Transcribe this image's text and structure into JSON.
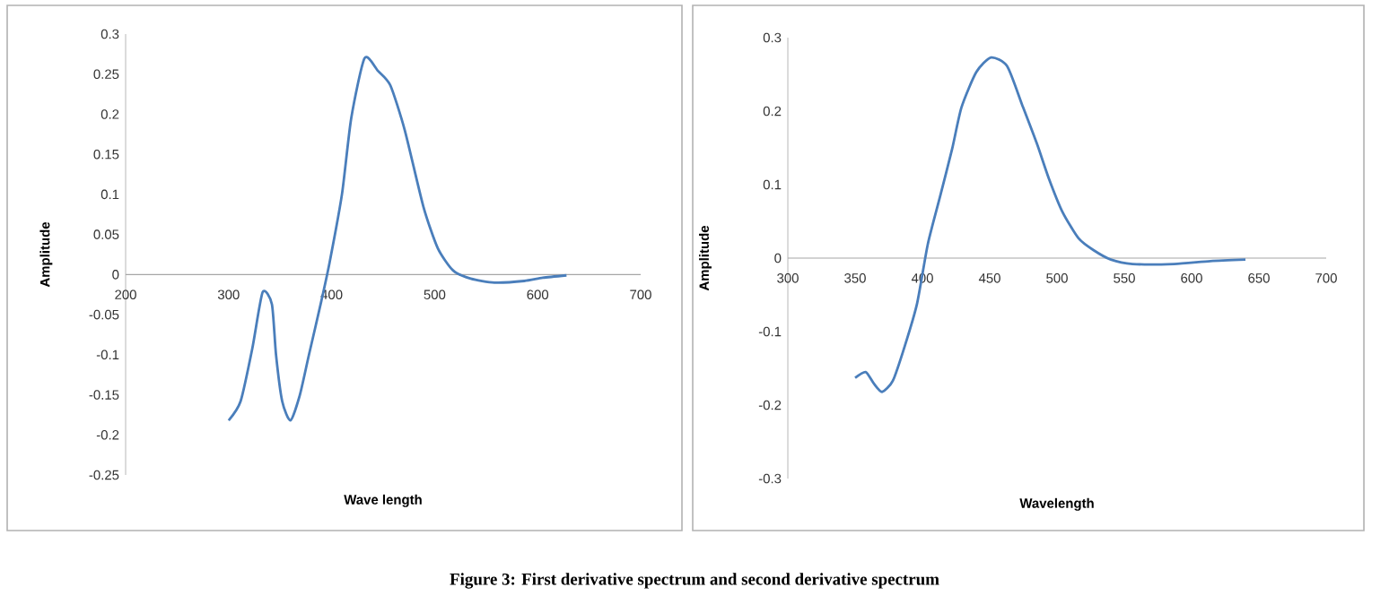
{
  "chart_data": [
    {
      "type": "line",
      "xlabel": "Wave length",
      "ylabel": "Amplitude",
      "color": "#4a7ebb",
      "xlim": [
        200,
        700
      ],
      "ylim": [
        -0.25,
        0.3
      ],
      "xticks": [
        200,
        300,
        400,
        500,
        600,
        700
      ],
      "yticks": [
        -0.25,
        -0.2,
        -0.15,
        -0.1,
        -0.05,
        0,
        0.05,
        0.1,
        0.15,
        0.2,
        0.25,
        0.3
      ],
      "grid": false,
      "x": [
        300,
        311.6,
        323,
        333,
        342,
        346,
        352,
        360,
        369,
        378,
        390,
        398,
        410,
        419,
        432,
        445,
        457,
        471,
        489,
        503,
        518,
        535,
        558,
        587,
        605,
        628
      ],
      "values": [
        -0.182,
        -0.158,
        -0.092,
        -0.022,
        -0.037,
        -0.1,
        -0.158,
        -0.182,
        -0.151,
        -0.1,
        -0.033,
        0.015,
        0.1,
        0.195,
        0.27,
        0.254,
        0.236,
        0.18,
        0.085,
        0.033,
        0.005,
        -0.005,
        -0.01,
        -0.008,
        -0.004,
        -0.001
      ],
      "annotations": [
        "Figure 3: First derivative spectrum and second derivative spectrum"
      ]
    },
    {
      "type": "line",
      "xlabel": "Wavelength",
      "ylabel": "Amplitude",
      "color": "#4a7ebb",
      "xlim": [
        300,
        700
      ],
      "ylim": [
        -0.3,
        0.3
      ],
      "xticks": [
        300,
        350,
        400,
        450,
        500,
        550,
        600,
        650,
        700
      ],
      "yticks": [
        -0.3,
        -0.2,
        -0.1,
        0,
        0.1,
        0.2,
        0.3
      ],
      "grid": false,
      "x": [
        350,
        357.8,
        364,
        370,
        378,
        387,
        396,
        404,
        413,
        422,
        429,
        440,
        451,
        463,
        474,
        485,
        494,
        504,
        516,
        527,
        540,
        556,
        587,
        614,
        640
      ],
      "values": [
        -0.163,
        -0.155,
        -0.171,
        -0.182,
        -0.167,
        -0.119,
        -0.062,
        0.019,
        0.083,
        0.148,
        0.205,
        0.253,
        0.273,
        0.261,
        0.209,
        0.156,
        0.108,
        0.063,
        0.027,
        0.011,
        -0.002,
        -0.008,
        -0.008,
        -0.004,
        -0.002
      ]
    }
  ]
}
